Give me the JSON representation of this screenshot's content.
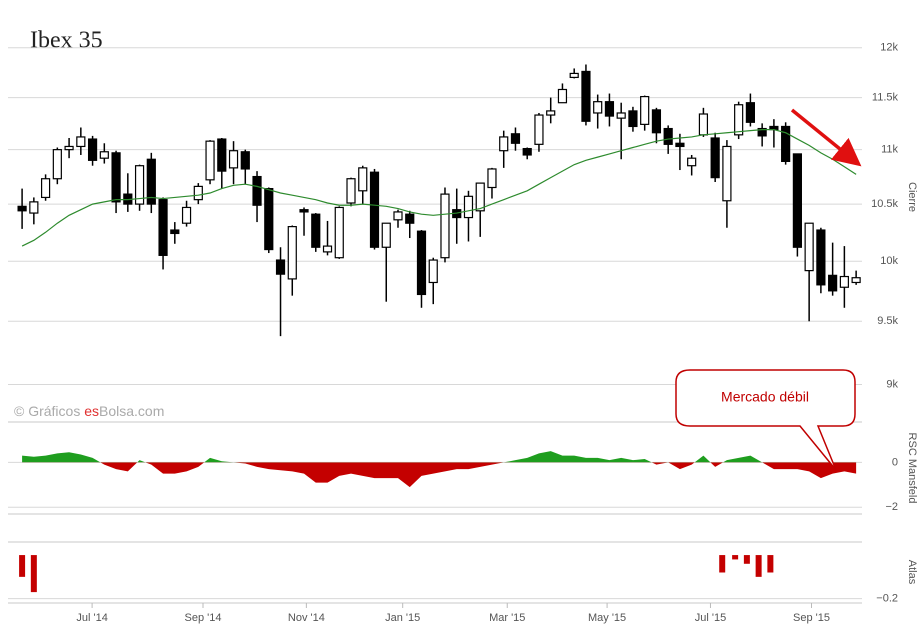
{
  "chart_data": [
    {
      "type": "candlestick",
      "title": "Ibex 35",
      "y_label": "Cierre",
      "log": true,
      "grid": true,
      "xlim": [
        -1.2,
        71.5
      ],
      "ylim": [
        8920,
        12500
      ],
      "yticks": [
        {
          "value": 9000,
          "label": "9k"
        },
        {
          "value": 9500,
          "label": "9.5k"
        },
        {
          "value": 10000,
          "label": "10k"
        },
        {
          "value": 10500,
          "label": "10.5k"
        },
        {
          "value": 11000,
          "label": "11k"
        },
        {
          "value": 11500,
          "label": "11.5k"
        },
        {
          "value": 12000,
          "label": "12k"
        }
      ],
      "up_color": "#ffffff",
      "down_color": "#000000",
      "open": [
        10480,
        10420,
        10560,
        10730,
        11000,
        11030,
        11100,
        10920,
        10970,
        10590,
        10500,
        10910,
        10540,
        10270,
        10330,
        10540,
        10720,
        11100,
        10830,
        10980,
        10750,
        10640,
        10010,
        9850,
        10450,
        10410,
        10080,
        10030,
        10510,
        10620,
        10790,
        10120,
        10360,
        10410,
        10260,
        9820,
        10030,
        10450,
        10380,
        10440,
        10650,
        10990,
        11150,
        11010,
        11050,
        11330,
        11450,
        11700,
        11760,
        11350,
        11460,
        11300,
        11370,
        11240,
        11380,
        11200,
        11060,
        10850,
        11140,
        11110,
        10530,
        11140,
        11450,
        11200,
        11220,
        11220,
        10960,
        9920,
        10270,
        9880,
        9780,
        9820
      ],
      "high": [
        10640,
        10560,
        10770,
        11020,
        11110,
        11210,
        11130,
        11060,
        10990,
        10780,
        10860,
        10970,
        10560,
        10340,
        10530,
        10690,
        11090,
        11110,
        11080,
        11000,
        10800,
        10650,
        10120,
        10310,
        10470,
        10420,
        10350,
        10480,
        10740,
        10850,
        10820,
        10330,
        10450,
        10440,
        10270,
        10030,
        10650,
        10640,
        10620,
        10690,
        10830,
        11180,
        11210,
        11020,
        11350,
        11500,
        11640,
        11790,
        11830,
        11530,
        11540,
        11450,
        11410,
        11520,
        11400,
        11230,
        11150,
        10950,
        11400,
        11160,
        11090,
        11460,
        11540,
        11250,
        11290,
        11260,
        10960,
        10330,
        10290,
        10160,
        10130,
        9920
      ],
      "low": [
        10280,
        10320,
        10530,
        10680,
        10920,
        10950,
        10850,
        10870,
        10420,
        10430,
        10440,
        10420,
        9930,
        10150,
        10300,
        10500,
        10680,
        10640,
        10680,
        10680,
        10340,
        10070,
        9380,
        9710,
        10220,
        10080,
        10050,
        10020,
        10480,
        10500,
        10100,
        9660,
        10290,
        10200,
        9610,
        9640,
        9990,
        10150,
        10170,
        10210,
        10550,
        10830,
        10990,
        10910,
        10980,
        11250,
        11450,
        11690,
        11230,
        11200,
        11220,
        10910,
        11170,
        11180,
        11060,
        10960,
        10810,
        10760,
        11120,
        10700,
        10290,
        11100,
        11220,
        11030,
        11020,
        10860,
        10040,
        9500,
        9730,
        9710,
        9610,
        9800
      ],
      "close": [
        10440,
        10520,
        10730,
        11000,
        11030,
        11120,
        10900,
        10980,
        10520,
        10500,
        10850,
        10500,
        10050,
        10240,
        10470,
        10660,
        11080,
        10800,
        10990,
        10820,
        10490,
        10100,
        9890,
        10300,
        10430,
        10120,
        10130,
        10470,
        10730,
        10830,
        10120,
        10330,
        10430,
        10330,
        9720,
        10010,
        10590,
        10380,
        10570,
        10690,
        10820,
        11120,
        11060,
        10950,
        11330,
        11370,
        11580,
        11740,
        11270,
        11460,
        11320,
        11350,
        11220,
        11510,
        11160,
        11050,
        11030,
        10920,
        11340,
        10740,
        11030,
        11430,
        11260,
        11130,
        11190,
        10890,
        10120,
        10330,
        9800,
        9750,
        9870,
        9860
      ],
      "overlay": {
        "color": "#2e8b2e",
        "values": [
          10130,
          10180,
          10250,
          10330,
          10400,
          10450,
          10500,
          10520,
          10540,
          10540,
          10550,
          10560,
          10550,
          10560,
          10570,
          10580,
          10600,
          10640,
          10670,
          10680,
          10660,
          10630,
          10600,
          10580,
          10560,
          10540,
          10510,
          10490,
          10490,
          10500,
          10490,
          10480,
          10460,
          10430,
          10410,
          10400,
          10410,
          10420,
          10440,
          10460,
          10500,
          10540,
          10580,
          10620,
          10680,
          10740,
          10800,
          10860,
          10900,
          10930,
          10960,
          10990,
          11020,
          11050,
          11080,
          11100,
          11110,
          11120,
          11140,
          11150,
          11160,
          11170,
          11180,
          11190,
          11190,
          11160,
          11100,
          11040,
          10970,
          10910,
          10840,
          10770
        ]
      },
      "watermark": [
        "© Gráficos ",
        "es",
        "Bolsa.com"
      ],
      "annotation": "Mercado débil"
    },
    {
      "type": "area",
      "y_label": "RSC Mansfeld",
      "xlim": [
        -1.2,
        71.5
      ],
      "ylim": [
        -2.3,
        1.8
      ],
      "yticks": [
        0,
        {
          "value": -2,
          "label": "−2"
        }
      ],
      "positive_color": "#1f9e1f",
      "negative_color": "#c40000",
      "values": [
        0.3,
        0.25,
        0.3,
        0.4,
        0.45,
        0.35,
        0.2,
        -0.1,
        -0.3,
        -0.4,
        0.1,
        -0.1,
        -0.5,
        -0.5,
        -0.4,
        -0.2,
        0.2,
        0.05,
        0,
        -0.05,
        -0.2,
        -0.3,
        -0.35,
        -0.4,
        -0.5,
        -0.9,
        -0.9,
        -0.6,
        -0.5,
        -0.6,
        -0.7,
        -0.7,
        -0.7,
        -1.1,
        -0.6,
        -0.5,
        -0.4,
        -0.3,
        -0.3,
        -0.2,
        -0.1,
        0,
        0.1,
        0.2,
        0.4,
        0.5,
        0.3,
        0.3,
        0.2,
        0.2,
        0.1,
        0.2,
        0.1,
        0.15,
        -0.1,
        0,
        -0.3,
        -0.1,
        0.3,
        -0.2,
        0.1,
        0.2,
        0.3,
        0,
        -0.3,
        -0.3,
        -0.3,
        -0.4,
        -0.7,
        -0.5,
        -0.4,
        -0.5
      ]
    },
    {
      "type": "bar",
      "y_label": "Atlas",
      "xlim": [
        -1.2,
        71.5
      ],
      "ylim": [
        -0.22,
        0.06
      ],
      "yticks": [
        {
          "value": -0.2,
          "label": "−0.2"
        }
      ],
      "color": "#c40000",
      "x": [
        0,
        1,
        59.6,
        60.7,
        61.7,
        62.7,
        63.7
      ],
      "values": [
        -0.1,
        -0.17,
        -0.08,
        -0.02,
        -0.04,
        -0.1,
        -0.08
      ],
      "xticks": [
        {
          "value": 5.96,
          "label": "Jul '14"
        },
        {
          "value": 15.4,
          "label": "Sep '14"
        },
        {
          "value": 24.2,
          "label": "Nov '14"
        },
        {
          "value": 32.4,
          "label": "Jan '15"
        },
        {
          "value": 41.3,
          "label": "Mar '15"
        },
        {
          "value": 49.8,
          "label": "May '15"
        },
        {
          "value": 58.6,
          "label": "Jul '15"
        },
        {
          "value": 67.2,
          "label": "Sep '15"
        }
      ]
    }
  ]
}
